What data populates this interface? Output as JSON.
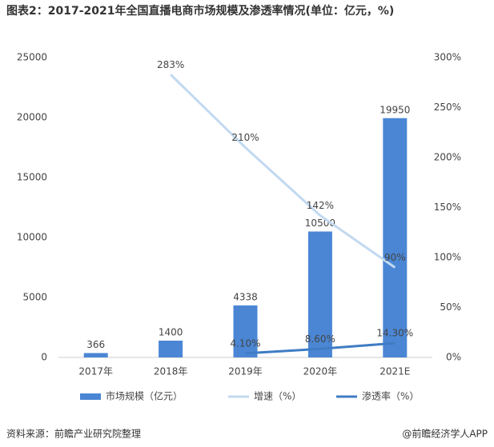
{
  "chart_data": {
    "type": "bar-line",
    "title": "图表2：2017-2021年全国直播电商市场规模及渗透率情况(单位：亿元，%)",
    "categories": [
      "2017年",
      "2018年",
      "2019年",
      "2020年",
      "2021E"
    ],
    "series": [
      {
        "name": "市场规模（亿元）",
        "type": "bar",
        "color": "#4a86d4",
        "values": [
          366,
          1400,
          4338,
          10500,
          19950
        ]
      },
      {
        "name": "增速（%）",
        "type": "line",
        "axis": "y2",
        "color": "#c2d9f0",
        "values": [
          null,
          283,
          210,
          142,
          90
        ],
        "value_labels": [
          null,
          "283%",
          "210%",
          "142%",
          "90%"
        ]
      },
      {
        "name": "渗透率（%）",
        "type": "line",
        "axis": "y2",
        "color": "#3f7cc4",
        "values": [
          null,
          null,
          4.1,
          8.6,
          14.3
        ],
        "value_labels": [
          null,
          null,
          "4.10%",
          "8.60%",
          "14.30%"
        ]
      }
    ],
    "ylim": [
      0,
      25000
    ],
    "yticks": [
      0,
      5000,
      10000,
      15000,
      20000,
      25000
    ],
    "y2lim": [
      0,
      300
    ],
    "y2ticks": [
      {
        "value": 0,
        "label": "0%"
      },
      {
        "value": 50,
        "label": "50%"
      },
      {
        "value": 100,
        "label": "100%"
      },
      {
        "value": 150,
        "label": "150%"
      },
      {
        "value": 200,
        "label": "200%"
      },
      {
        "value": 250,
        "label": "250%"
      },
      {
        "value": 300,
        "label": "300%"
      }
    ],
    "legend": "bottom",
    "source": "资料来源：前瞻产业研究院整理",
    "credit": "@前瞻经济学人APP"
  }
}
